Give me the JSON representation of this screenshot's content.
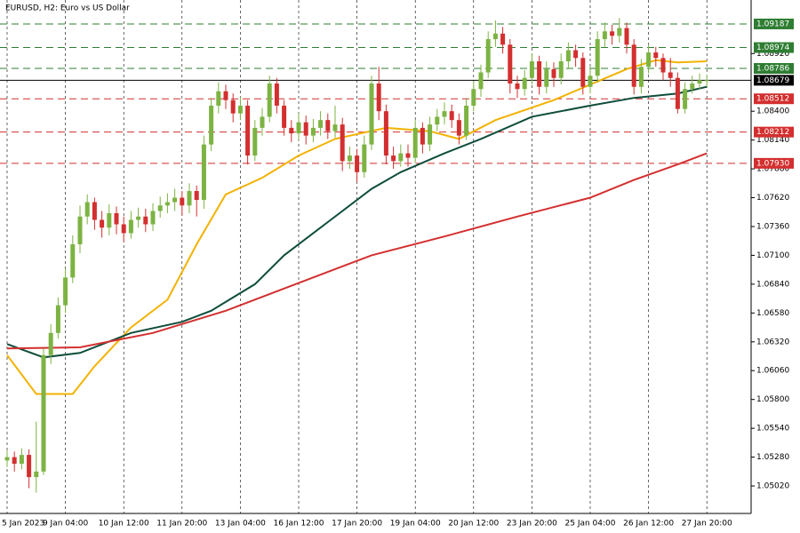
{
  "chart_data": {
    "type": "candlestick",
    "title": "EURUSD, H2:  Euro vs US Dollar",
    "categories": [
      "5 Jan 2023",
      null,
      null,
      null,
      null,
      null,
      null,
      null,
      "9 Jan 04:00",
      null,
      null,
      null,
      null,
      null,
      null,
      null,
      "10 Jan 12:00",
      null,
      null,
      null,
      null,
      null,
      null,
      null,
      "11 Jan 20:00",
      null,
      null,
      null,
      null,
      null,
      null,
      null,
      "13 Jan 04:00",
      null,
      null,
      null,
      null,
      null,
      null,
      null,
      "16 Jan 12:00",
      null,
      null,
      null,
      null,
      null,
      null,
      null,
      "17 Jan 20:00",
      null,
      null,
      null,
      null,
      null,
      null,
      null,
      "19 Jan 04:00",
      null,
      null,
      null,
      null,
      null,
      null,
      null,
      "20 Jan 12:00",
      null,
      null,
      null,
      null,
      null,
      null,
      null,
      "23 Jan 20:00",
      null,
      null,
      null,
      null,
      null,
      null,
      null,
      "25 Jan 04:00",
      null,
      null,
      null,
      null,
      null,
      null,
      null,
      "26 Jan 12:00",
      null,
      null,
      null,
      null,
      null,
      null,
      null,
      "27 Jan 20:00"
    ],
    "open": [
      1.0525,
      1.0528,
      1.0522,
      1.053,
      1.051,
      1.0515,
      1.062,
      1.064,
      1.0665,
      1.069,
      1.072,
      1.0745,
      1.0758,
      1.0742,
      1.0735,
      1.0748,
      1.0738,
      1.073,
      1.0742,
      1.0745,
      1.0738,
      1.075,
      1.0755,
      1.0758,
      1.0762,
      1.0755,
      1.0768,
      1.076,
      1.081,
      1.0845,
      1.0858,
      1.085,
      1.0838,
      1.0845,
      1.08,
      1.0825,
      1.0835,
      1.0865,
      1.0845,
      1.0825,
      1.082,
      1.083,
      1.0818,
      1.0825,
      1.0832,
      1.0822,
      1.0828,
      1.0795,
      1.08,
      1.0785,
      1.081,
      1.0865,
      1.084,
      1.08,
      1.0795,
      1.0802,
      1.0798,
      1.0825,
      1.081,
      1.0828,
      1.0835,
      1.084,
      1.0832,
      1.0818,
      1.0845,
      1.086,
      1.0875,
      1.0905,
      1.091,
      1.09,
      1.0865,
      1.086,
      1.087,
      1.0885,
      1.0862,
      1.0878,
      1.087,
      1.0885,
      1.0895,
      1.0888,
      1.0862,
      1.0872,
      1.0905,
      1.0912,
      1.0908,
      1.0915,
      1.09,
      1.0862,
      1.088,
      1.0893,
      1.0888,
      1.0875,
      1.087,
      1.0842,
      1.086,
      1.0865,
      1.0868
    ],
    "high": [
      1.0534,
      1.0533,
      1.0536,
      1.0535,
      1.056,
      1.0626,
      1.0648,
      1.0672,
      1.0698,
      1.0728,
      1.0755,
      1.0765,
      1.0762,
      1.075,
      1.0756,
      1.0754,
      1.0745,
      1.075,
      1.0753,
      1.0752,
      1.0757,
      1.0763,
      1.0766,
      1.077,
      1.0768,
      1.0775,
      1.0773,
      1.0818,
      1.0852,
      1.0866,
      1.0864,
      1.0856,
      1.0853,
      1.085,
      1.0832,
      1.0843,
      1.0872,
      1.087,
      1.085,
      1.0832,
      1.0838,
      1.0836,
      1.0833,
      1.084,
      1.0838,
      1.0845,
      1.0834,
      1.0808,
      1.0806,
      1.0818,
      1.0872,
      1.088,
      1.0846,
      1.0808,
      1.081,
      1.081,
      1.0832,
      1.083,
      1.0835,
      1.0842,
      1.0848,
      1.0846,
      1.0838,
      1.0852,
      1.0867,
      1.0882,
      1.0912,
      1.0922,
      1.0916,
      1.0905,
      1.0872,
      1.0877,
      1.0892,
      1.089,
      1.0885,
      1.0884,
      1.0892,
      1.0902,
      1.09,
      1.0893,
      1.088,
      1.0912,
      1.092,
      1.0918,
      1.0924,
      1.092,
      1.0905,
      1.0887,
      1.09,
      1.0898,
      1.0892,
      1.0888,
      1.0875,
      1.0866,
      1.0872,
      1.0874,
      1.0873
    ],
    "low": [
      1.0519,
      1.0515,
      1.0517,
      1.05,
      1.0496,
      1.0512,
      1.0612,
      1.0635,
      1.0658,
      1.0685,
      1.0712,
      1.0738,
      1.0733,
      1.0726,
      1.0728,
      1.0729,
      1.0722,
      1.0725,
      1.0735,
      1.0731,
      1.0732,
      1.0744,
      1.0748,
      1.075,
      1.0746,
      1.0748,
      1.0745,
      1.0752,
      1.0804,
      1.0838,
      1.0842,
      1.083,
      1.0832,
      1.0792,
      1.0795,
      1.0818,
      1.083,
      1.0838,
      1.0818,
      1.0812,
      1.0814,
      1.081,
      1.0812,
      1.0818,
      1.0815,
      1.0816,
      1.0786,
      1.0788,
      1.0776,
      1.078,
      1.0805,
      1.0832,
      1.0792,
      1.0788,
      1.079,
      1.079,
      1.0793,
      1.0802,
      1.0804,
      1.0822,
      1.0828,
      1.0825,
      1.081,
      1.0814,
      1.084,
      1.0853,
      1.087,
      1.0898,
      1.0892,
      1.0856,
      1.0852,
      1.0854,
      1.0864,
      1.0855,
      1.0856,
      1.0862,
      1.0864,
      1.0878,
      1.088,
      1.0855,
      1.0856,
      1.0866,
      1.0898,
      1.09,
      1.0902,
      1.0892,
      1.0855,
      1.0856,
      1.0874,
      1.088,
      1.0868,
      1.0862,
      1.0838,
      1.0838,
      1.0856,
      1.086,
      1.0862
    ],
    "close": [
      1.0528,
      1.0522,
      1.053,
      1.051,
      1.0515,
      1.062,
      1.064,
      1.0665,
      1.069,
      1.072,
      1.0745,
      1.0758,
      1.0742,
      1.0735,
      1.0748,
      1.0738,
      1.073,
      1.0742,
      1.0745,
      1.0738,
      1.075,
      1.0755,
      1.0758,
      1.0762,
      1.0755,
      1.0768,
      1.076,
      1.081,
      1.0845,
      1.0858,
      1.085,
      1.0838,
      1.0845,
      1.08,
      1.0825,
      1.0835,
      1.0865,
      1.0845,
      1.0825,
      1.082,
      1.083,
      1.0818,
      1.0825,
      1.0832,
      1.0822,
      1.0828,
      1.0795,
      1.08,
      1.0785,
      1.081,
      1.0865,
      1.084,
      1.08,
      1.0795,
      1.0802,
      1.0798,
      1.0825,
      1.081,
      1.0828,
      1.0835,
      1.084,
      1.0832,
      1.0818,
      1.0845,
      1.086,
      1.0875,
      1.0905,
      1.091,
      1.09,
      1.0865,
      1.086,
      1.087,
      1.0885,
      1.0862,
      1.0878,
      1.087,
      1.0885,
      1.0895,
      1.0888,
      1.0862,
      1.0872,
      1.0905,
      1.0912,
      1.0908,
      1.0915,
      1.09,
      1.0862,
      1.088,
      1.0893,
      1.0888,
      1.0875,
      1.087,
      1.0842,
      1.086,
      1.0865,
      1.0868,
      1.0868
    ],
    "up_color": "#7cb342",
    "down_color": "#d32f2f",
    "series": [
      {
        "color": "#f2b200",
        "x": [
          0,
          4,
          9,
          12,
          17,
          22,
          26,
          30,
          35,
          40,
          45,
          52,
          58,
          62,
          67,
          75,
          80,
          85,
          89,
          92,
          96
        ],
        "values": [
          1.062,
          1.0585,
          1.0585,
          1.061,
          1.0645,
          1.067,
          1.072,
          1.0765,
          1.078,
          1.08,
          1.0815,
          1.0825,
          1.0822,
          1.0815,
          1.0832,
          1.085,
          1.0864,
          1.0878,
          1.0886,
          1.0884,
          1.0885
        ]
      },
      {
        "color": "#0f4d3c",
        "x": [
          0,
          5,
          10,
          17,
          24,
          28,
          34,
          38,
          44,
          50,
          54,
          60,
          65,
          72,
          80,
          86,
          92,
          96
        ],
        "values": [
          1.063,
          1.0618,
          1.0622,
          1.064,
          1.065,
          1.066,
          1.0684,
          1.071,
          1.074,
          1.077,
          1.0785,
          1.0802,
          1.0815,
          1.0835,
          1.0845,
          1.0852,
          1.0856,
          1.0862
        ]
      },
      {
        "color": "#d32f2f",
        "x": [
          0,
          10,
          20,
          30,
          40,
          50,
          60,
          70,
          80,
          86,
          92,
          96
        ],
        "values": [
          1.0626,
          1.0627,
          1.064,
          1.066,
          1.0685,
          1.071,
          1.0727,
          1.0745,
          1.0762,
          1.0778,
          1.0792,
          1.0802
        ]
      }
    ],
    "levels": [
      {
        "value": 1.09187,
        "color": "#2e7d32",
        "dashed": true
      },
      {
        "value": 1.08974,
        "color": "#2e7d32",
        "dashed": true
      },
      {
        "value": 1.08786,
        "color": "#2e7d32",
        "dashed": true
      },
      {
        "value": 1.08679,
        "color": "#000000",
        "dashed": false
      },
      {
        "value": 1.08512,
        "color": "#d32f2f",
        "dashed": true
      },
      {
        "value": 1.08212,
        "color": "#d32f2f",
        "dashed": true
      },
      {
        "value": 1.0793,
        "label": "1.07930",
        "color": "#d32f2f",
        "dashed": true
      }
    ],
    "ylim": [
      1.04772,
      1.09403
    ],
    "yticks": [
      {
        "value": 1.0892,
        "label": "1.08920"
      },
      {
        "value": 1.084,
        "label": "1.08400"
      },
      {
        "value": 1.0814,
        "label": "1.08140"
      },
      {
        "value": 1.0788,
        "label": "1.07880"
      },
      {
        "value": 1.0762,
        "label": "1.07620"
      },
      {
        "value": 1.0736,
        "label": "1.07360"
      },
      {
        "value": 1.071,
        "label": "1.07100"
      },
      {
        "value": 1.0684,
        "label": "1.06840"
      },
      {
        "value": 1.0658,
        "label": "1.06580"
      },
      {
        "value": 1.0632,
        "label": "1.06320"
      },
      {
        "value": 1.0606,
        "label": "1.06060"
      },
      {
        "value": 1.058,
        "label": "1.05800"
      },
      {
        "value": 1.0554,
        "label": "1.05540"
      },
      {
        "value": 1.0528,
        "label": "1.05280"
      },
      {
        "value": 1.0502,
        "label": "1.05020"
      }
    ]
  }
}
